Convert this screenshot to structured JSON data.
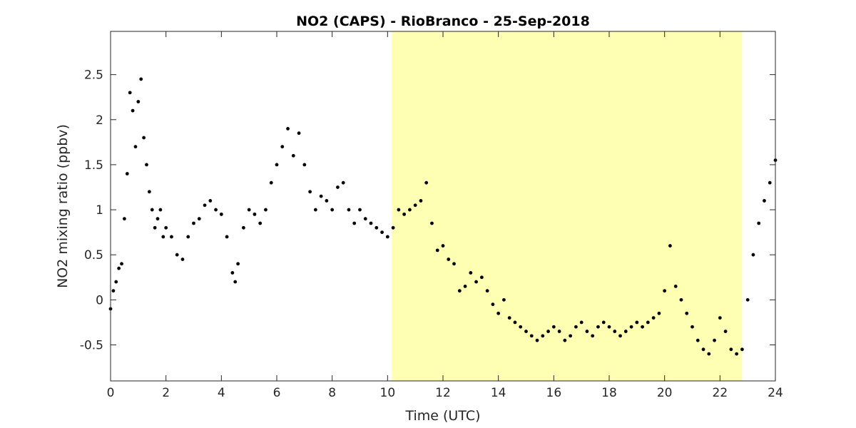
{
  "chart_data": {
    "type": "scatter",
    "title": "NO2 (CAPS) - RioBranco - 25-Sep-2018",
    "xlabel": "Time (UTC)",
    "ylabel": "NO2 mixing ratio (ppbv)",
    "xlim": [
      0,
      24
    ],
    "ylim": [
      -0.9,
      2.98
    ],
    "xticks": [
      0,
      2,
      4,
      6,
      8,
      10,
      12,
      14,
      16,
      18,
      20,
      22,
      24
    ],
    "yticks": [
      -0.5,
      0,
      0.5,
      1,
      1.5,
      2,
      2.5
    ],
    "ytick_labels": [
      "-0.5",
      "0",
      "0.5",
      "1",
      "1.5",
      "2",
      "2.5"
    ],
    "grid": false,
    "shaded_region": {
      "x": [
        10.15,
        22.8
      ],
      "color": "#ffffb3"
    },
    "marker_color": "#000000",
    "series": [
      {
        "x": [
          0.0,
          0.1,
          0.2,
          0.3,
          0.4,
          0.5,
          0.6,
          0.7,
          0.8,
          0.9,
          1.0,
          1.1,
          1.2,
          1.3,
          1.4,
          1.5,
          1.6,
          1.7,
          1.8,
          1.9,
          2.0,
          2.2,
          2.4,
          2.6,
          2.8,
          3.0,
          3.2,
          3.4,
          3.6,
          3.8,
          4.0,
          4.2,
          4.4,
          4.5,
          4.6,
          4.8,
          5.0,
          5.2,
          5.4,
          5.6,
          5.8,
          6.0,
          6.2,
          6.4,
          6.6,
          6.8,
          7.0,
          7.2,
          7.4,
          7.6,
          7.8,
          8.0,
          8.2,
          8.4,
          8.6,
          8.8,
          9.0,
          9.2,
          9.4,
          9.6,
          9.8,
          10.0,
          10.2,
          10.4,
          10.6,
          10.8,
          11.0,
          11.2,
          11.4,
          11.6,
          11.8,
          12.0,
          12.2,
          12.4,
          12.6,
          12.8,
          13.0,
          13.2,
          13.4,
          13.6,
          13.8,
          14.0,
          14.2,
          14.4,
          14.6,
          14.8,
          15.0,
          15.2,
          15.4,
          15.6,
          15.8,
          16.0,
          16.2,
          16.4,
          16.6,
          16.8,
          17.0,
          17.2,
          17.4,
          17.6,
          17.8,
          18.0,
          18.2,
          18.4,
          18.6,
          18.8,
          19.0,
          19.2,
          19.4,
          19.6,
          19.8,
          20.0,
          20.2,
          20.4,
          20.6,
          20.8,
          21.0,
          21.2,
          21.4,
          21.6,
          21.8,
          22.0,
          22.2,
          22.4,
          22.6,
          22.8,
          23.0,
          23.2,
          23.4,
          23.6,
          23.8,
          24.0
        ],
        "y": [
          -0.1,
          0.1,
          0.2,
          0.35,
          0.4,
          0.9,
          1.4,
          2.3,
          2.1,
          1.7,
          2.2,
          2.45,
          1.8,
          1.5,
          1.2,
          1.0,
          0.8,
          0.9,
          1.0,
          0.7,
          0.8,
          0.7,
          0.5,
          0.45,
          0.7,
          0.85,
          0.9,
          1.05,
          1.1,
          1.0,
          0.95,
          0.7,
          0.3,
          0.2,
          0.4,
          0.8,
          1.0,
          0.95,
          0.85,
          1.0,
          1.3,
          1.5,
          1.7,
          1.9,
          1.6,
          1.85,
          1.5,
          1.2,
          1.0,
          1.15,
          1.1,
          1.0,
          1.25,
          1.3,
          1.0,
          0.85,
          1.0,
          0.9,
          0.85,
          0.8,
          0.75,
          0.7,
          0.8,
          1.0,
          0.95,
          1.0,
          1.05,
          1.1,
          1.3,
          0.85,
          0.55,
          0.6,
          0.45,
          0.4,
          0.1,
          0.15,
          0.3,
          0.2,
          0.25,
          0.1,
          -0.05,
          -0.15,
          0.0,
          -0.2,
          -0.25,
          -0.3,
          -0.35,
          -0.4,
          -0.45,
          -0.4,
          -0.35,
          -0.3,
          -0.35,
          -0.45,
          -0.4,
          -0.3,
          -0.25,
          -0.35,
          -0.4,
          -0.3,
          -0.25,
          -0.3,
          -0.35,
          -0.4,
          -0.35,
          -0.3,
          -0.25,
          -0.3,
          -0.25,
          -0.2,
          -0.15,
          0.1,
          0.6,
          0.15,
          0.0,
          -0.15,
          -0.3,
          -0.45,
          -0.55,
          -0.6,
          -0.45,
          -0.2,
          -0.35,
          -0.55,
          -0.6,
          -0.55,
          0.0,
          0.5,
          0.85,
          1.1,
          1.3,
          1.55
        ]
      }
    ]
  }
}
